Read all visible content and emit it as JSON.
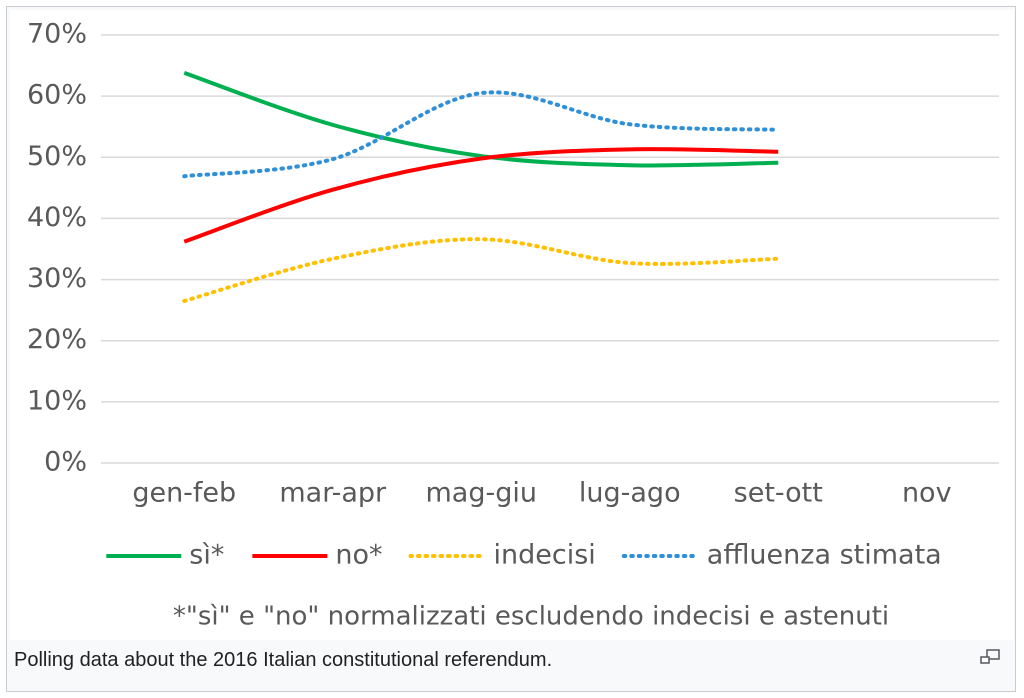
{
  "chart_data": {
    "type": "line",
    "categories": [
      "gen-feb",
      "mar-apr",
      "mag-giu",
      "lug-ago",
      "set-ott",
      "nov"
    ],
    "series": [
      {
        "name": "sì*",
        "color": "#00b050",
        "style": "solid",
        "values": [
          63.8,
          55.3,
          50.2,
          48.7,
          49.1,
          null
        ]
      },
      {
        "name": "no*",
        "color": "#ff0000",
        "style": "solid",
        "values": [
          36.2,
          44.7,
          49.8,
          51.3,
          50.9,
          null
        ]
      },
      {
        "name": "indecisi",
        "color": "#ffc000",
        "style": "dotted",
        "values": [
          26.5,
          33.4,
          36.6,
          32.7,
          33.4,
          null
        ]
      },
      {
        "name": "affluenza stimata",
        "color": "#2f8fd8",
        "style": "dotted",
        "values": [
          46.9,
          49.7,
          60.5,
          55.4,
          54.5,
          null
        ]
      }
    ],
    "ylim": [
      0,
      70
    ],
    "yticks": [
      {
        "value": 0,
        "label": "0%"
      },
      {
        "value": 10,
        "label": "10%"
      },
      {
        "value": 20,
        "label": "20%"
      },
      {
        "value": 30,
        "label": "30%"
      },
      {
        "value": 40,
        "label": "40%"
      },
      {
        "value": 50,
        "label": "50%"
      },
      {
        "value": 60,
        "label": "60%"
      },
      {
        "value": 70,
        "label": "70%"
      }
    ],
    "grid": true,
    "note": "*\"sì\" e \"no\" normalizzati escludendo indecisi e astenuti"
  },
  "caption": "Polling data about the 2016 Italian constitutional referendum."
}
